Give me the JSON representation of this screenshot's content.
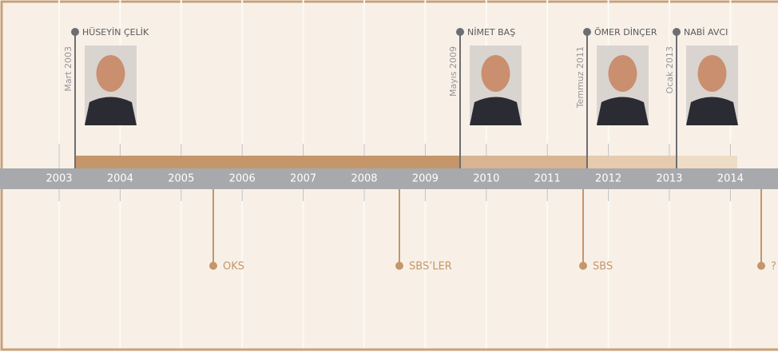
{
  "years": [
    "2003",
    "2004",
    "2005",
    "2006",
    "2007",
    "2008",
    "2009",
    "2010",
    "2011",
    "2012",
    "2013",
    "2014"
  ],
  "ministers": [
    {
      "name": "HÜSEYİN ÇELİK",
      "date": "Mart 2003"
    },
    {
      "name": "NİMET BAŞ",
      "date": "Mayıs 2009"
    },
    {
      "name": "ÖMER DİNÇER",
      "date": "Temmuz 2011"
    },
    {
      "name": "NABİ AVCI",
      "date": "Ocak 2013"
    }
  ],
  "exams": [
    "OKS",
    "SBS’LER",
    "SBS",
    "?"
  ]
}
